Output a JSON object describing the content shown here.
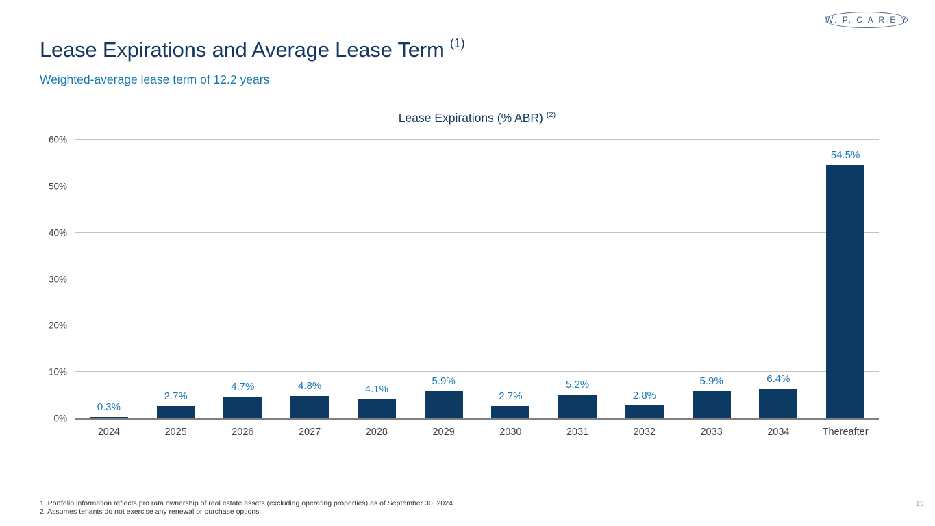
{
  "brand": {
    "logo_text": "W. P. C A R E Y"
  },
  "header": {
    "title": "Lease Expirations and Average Lease Term",
    "title_superscript": "(1)",
    "subtitle": "Weighted-average lease term of 12.2 years"
  },
  "chart_data": {
    "type": "bar",
    "title": "Lease Expirations (% ABR)",
    "title_superscript": "(2)",
    "categories": [
      "2024",
      "2025",
      "2026",
      "2027",
      "2028",
      "2029",
      "2030",
      "2031",
      "2032",
      "2033",
      "2034",
      "Thereafter"
    ],
    "values": [
      0.3,
      2.7,
      4.7,
      4.8,
      4.1,
      5.9,
      2.7,
      5.2,
      2.8,
      5.9,
      6.4,
      54.5
    ],
    "value_labels": [
      "0.3%",
      "2.7%",
      "4.7%",
      "4.8%",
      "4.1%",
      "5.9%",
      "2.7%",
      "5.2%",
      "2.8%",
      "5.9%",
      "6.4%",
      "54.5%"
    ],
    "xlabel": "",
    "ylabel": "",
    "ylim": [
      0,
      60
    ],
    "ytick_labels": [
      "0%",
      "10%",
      "20%",
      "30%",
      "40%",
      "50%",
      "60%"
    ],
    "grid": true,
    "legend": "none",
    "bar_color": "#0d3a63",
    "value_label_color": "#1577b2"
  },
  "footnotes": [
    "1. Portfolio information reflects pro rata ownership of real estate assets (excluding operating properties) as of September 30, 2024.",
    "2. Assumes tenants do not exercise any renewal or purchase options."
  ],
  "page_number": "15",
  "colors": {
    "title_navy": "#14385f",
    "accent_blue": "#1577b2",
    "bar_navy": "#0d3a63",
    "gridline_gray": "#c3c3c3",
    "axis_gray": "#808080"
  }
}
